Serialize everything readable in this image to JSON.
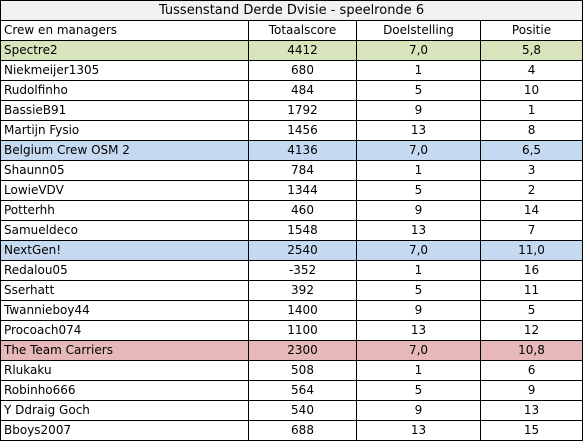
{
  "title": "Tussenstand Derde Dvisie - speelronde 6",
  "headers": [
    "Crew en managers",
    "Totaalscore",
    "Doelstelling",
    "Positie"
  ],
  "crews": [
    {
      "name": "Spectre2",
      "total": "4412",
      "goal": "7,0",
      "position": "5,8",
      "color": "#d8e4bc",
      "members": [
        {
          "name": "Niekmeijer1305",
          "total": "680",
          "goal": "1",
          "position": "4"
        },
        {
          "name": "Rudolfinho",
          "total": "484",
          "goal": "5",
          "position": "10"
        },
        {
          "name": "BassieB91",
          "total": "1792",
          "goal": "9",
          "position": "1"
        },
        {
          "name": "Martijn Fysio",
          "total": "1456",
          "goal": "13",
          "position": "8"
        }
      ]
    },
    {
      "name": "Belgium Crew OSM 2",
      "total": "4136",
      "goal": "7,0",
      "position": "6,5",
      "color": "#c5d9f1",
      "members": [
        {
          "name": "Shaunn05",
          "total": "784",
          "goal": "1",
          "position": "3"
        },
        {
          "name": "LowieVDV",
          "total": "1344",
          "goal": "5",
          "position": "2"
        },
        {
          "name": "Potterhh",
          "total": "460",
          "goal": "9",
          "position": "14"
        },
        {
          "name": "Samueldeco",
          "total": "1548",
          "goal": "13",
          "position": "7"
        }
      ]
    },
    {
      "name": "NextGen!",
      "total": "2540",
      "goal": "7,0",
      "position": "11,0",
      "color": "#c5d9f1",
      "members": [
        {
          "name": "Redalou05",
          "total": "-352",
          "goal": "1",
          "position": "16"
        },
        {
          "name": "Sserhatt",
          "total": "392",
          "goal": "5",
          "position": "11"
        },
        {
          "name": "Twannieboy44",
          "total": "1400",
          "goal": "9",
          "position": "5"
        },
        {
          "name": "Procoach074",
          "total": "1100",
          "goal": "13",
          "position": "12"
        }
      ]
    },
    {
      "name": "The Team Carriers",
      "total": "2300",
      "goal": "7,0",
      "position": "10,8",
      "color": "#e6b8b7",
      "members": [
        {
          "name": "Rlukaku",
          "total": "508",
          "goal": "1",
          "position": "6"
        },
        {
          "name": "Robinho666",
          "total": "564",
          "goal": "5",
          "position": "9"
        },
        {
          "name": "Y Ddraig Goch",
          "total": "540",
          "goal": "9",
          "position": "13"
        },
        {
          "name": "Bboys2007",
          "total": "688",
          "goal": "13",
          "position": "15"
        }
      ]
    }
  ]
}
